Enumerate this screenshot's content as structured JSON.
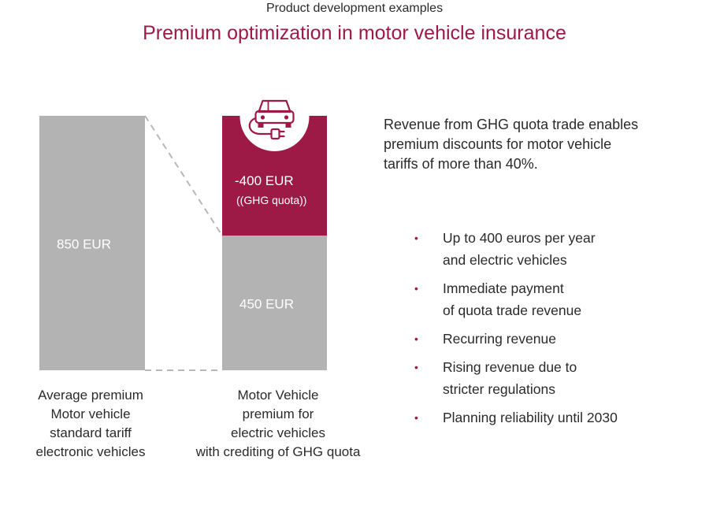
{
  "header": {
    "supertitle": "Product development examples",
    "title": "Premium optimization in motor vehicle insurance"
  },
  "colors": {
    "accent": "#9c1a45",
    "bar_gray": "#b3b3b3",
    "connector": "#b8b8b8",
    "text": "#2a2a2a"
  },
  "chart_data": {
    "type": "bar",
    "categories": [
      "Average premium Motor vehicle standard tariff electronic vehicles",
      "Motor Vehicle premium for electric vehicles with crediting of GHG quota"
    ],
    "bars": [
      {
        "category_index": 0,
        "segments": [
          {
            "value": 850,
            "label": "850 EUR",
            "sublabel": "",
            "color": "#b3b3b3"
          }
        ]
      },
      {
        "category_index": 1,
        "segments": [
          {
            "value": 450,
            "label": "450 EUR",
            "sublabel": "",
            "color": "#b3b3b3"
          },
          {
            "value": 400,
            "label": "-400 EUR",
            "sublabel": "((GHG quota))",
            "color": "#9c1a45"
          }
        ]
      }
    ],
    "ylim": [
      0,
      850
    ],
    "grid": false,
    "icon": "electric-car-icon"
  },
  "captions": [
    [
      "Average premium",
      "Motor vehicle",
      "standard tariff",
      "electronic vehicles"
    ],
    [
      "Motor Vehicle",
      "premium for",
      "electric vehicles",
      "with crediting of GHG quota"
    ]
  ],
  "description": [
    "Revenue from GHG quota trade enables",
    "premium discounts for motor vehicle",
    "tariffs of more than 40%."
  ],
  "bullets": [
    [
      "Up to 400 euros per year",
      "and electric vehicles"
    ],
    [
      "Immediate payment",
      "of quota trade revenue"
    ],
    [
      "Recurring revenue"
    ],
    [
      "Rising revenue due to",
      "stricter regulations"
    ],
    [
      "Planning reliability until 2030"
    ]
  ]
}
